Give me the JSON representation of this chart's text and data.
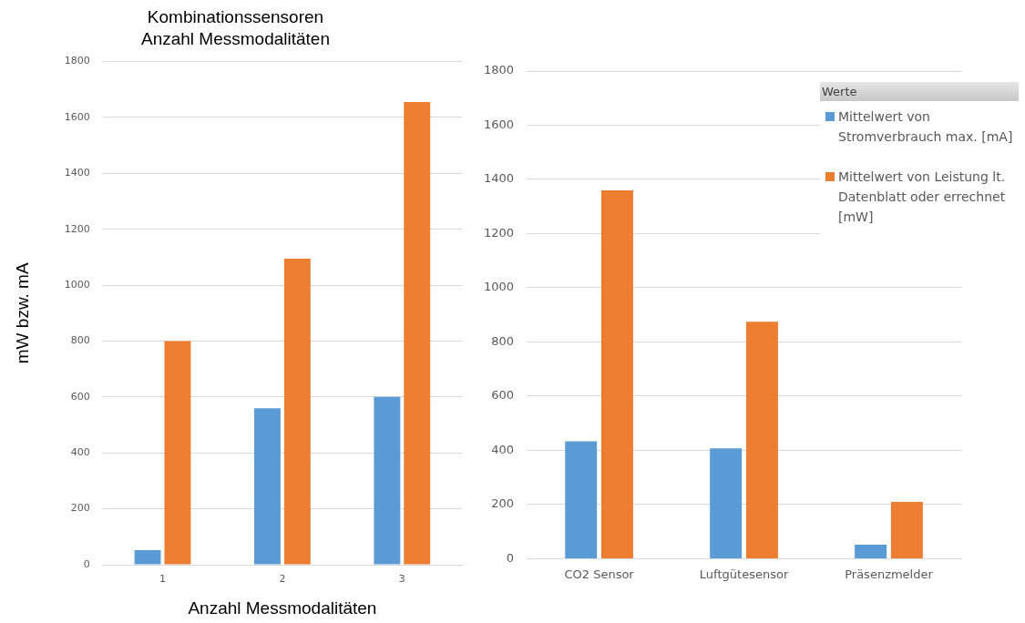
{
  "chart_data": [
    {
      "type": "bar",
      "title": "Kombinationssensoren",
      "subtitle": "Anzahl Messmodalitäten",
      "xlabel": "Anzahl Messmodalitäten",
      "ylabel": "mW bzw. mA",
      "categories": [
        "1",
        "2",
        "3"
      ],
      "series": [
        {
          "color": "#5b9bd5",
          "values": [
            52,
            560,
            600
          ]
        },
        {
          "color": "#ed7d31",
          "values": [
            800,
            1095,
            1655
          ]
        }
      ],
      "ylim": [
        0,
        1800
      ],
      "yticks": [
        0,
        200,
        400,
        600,
        800,
        1000,
        1200,
        1400,
        1600,
        1800
      ],
      "grid": "y",
      "legend": false
    },
    {
      "type": "bar",
      "legend_title": "Werte",
      "categories": [
        "CO2 Sensor",
        "Luftgütesensor",
        "Präsenzmelder"
      ],
      "series": [
        {
          "name": "Mittelwert von Stromverbrauch max. [mA]",
          "color": "#5b9bd5",
          "values": [
            433,
            407,
            52
          ]
        },
        {
          "name": "Mittelwert von Leistung lt. Datenblatt oder errechnet [mW]",
          "color": "#ed7d31",
          "values": [
            1360,
            875,
            210
          ]
        }
      ],
      "ylim": [
        0,
        1800
      ],
      "yticks": [
        0,
        200,
        400,
        600,
        800,
        1000,
        1200,
        1400,
        1600,
        1800
      ],
      "grid": "y",
      "legend": "top right"
    }
  ]
}
